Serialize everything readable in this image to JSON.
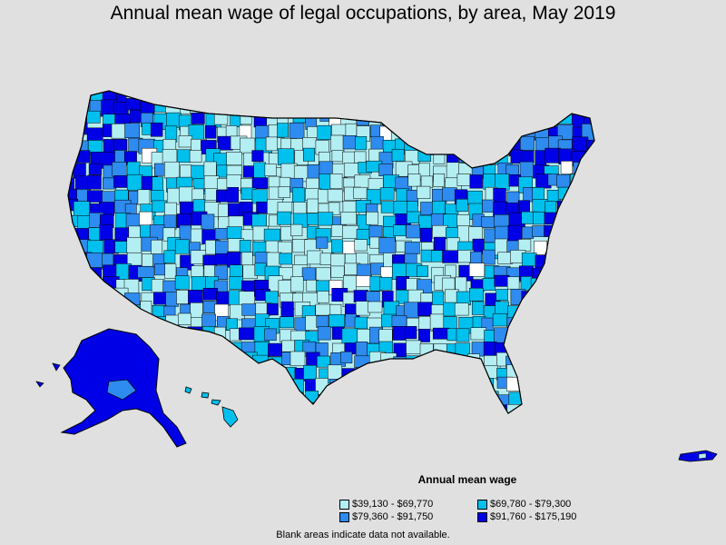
{
  "title": "Annual mean wage of legal occupations, by area, May 2019",
  "legend": {
    "title": "Annual mean wage",
    "items": [
      {
        "label": "$39,130 - $69,770",
        "color": "#b3eef2"
      },
      {
        "label": "$69,780 - $79,300",
        "color": "#00c0ee"
      },
      {
        "label": "$79,360 - $91,750",
        "color": "#2e8bef"
      },
      {
        "label": "$91,760 - $175,190",
        "color": "#0000e6"
      }
    ]
  },
  "footnote": "Blank areas indicate data not available.",
  "colors": {
    "background": "#e0e0e0",
    "border": "#000000",
    "no_data": "#ffffff"
  }
}
